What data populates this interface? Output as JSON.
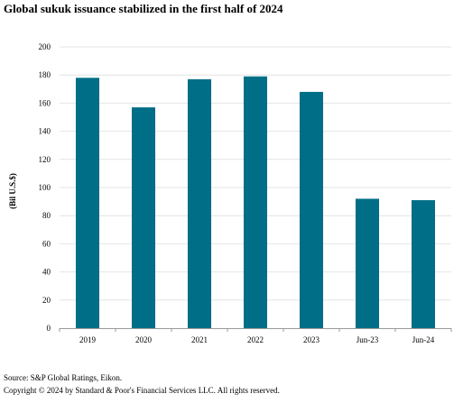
{
  "chart_data": {
    "type": "bar",
    "title": "Global sukuk issuance stabilized in the first half of 2024",
    "xlabel": "",
    "ylabel": "(Bil U.S.$)",
    "categories": [
      "2019",
      "2020",
      "2021",
      "2022",
      "2023",
      "Jun-23",
      "Jun-24"
    ],
    "series": [
      {
        "values": [
          178,
          157,
          177,
          179,
          168,
          92,
          91
        ],
        "color": "#006e87"
      }
    ],
    "ylim": [
      0,
      200
    ],
    "yticks": [
      0,
      20,
      40,
      60,
      80,
      100,
      120,
      140,
      160,
      180,
      200
    ],
    "grid": true,
    "legend": "none"
  },
  "footer": {
    "source": "Source: S&P Global Ratings, Eikon.",
    "copyright": "Copyright © 2024 by Standard & Poor's Financial Services LLC. All rights reserved."
  }
}
